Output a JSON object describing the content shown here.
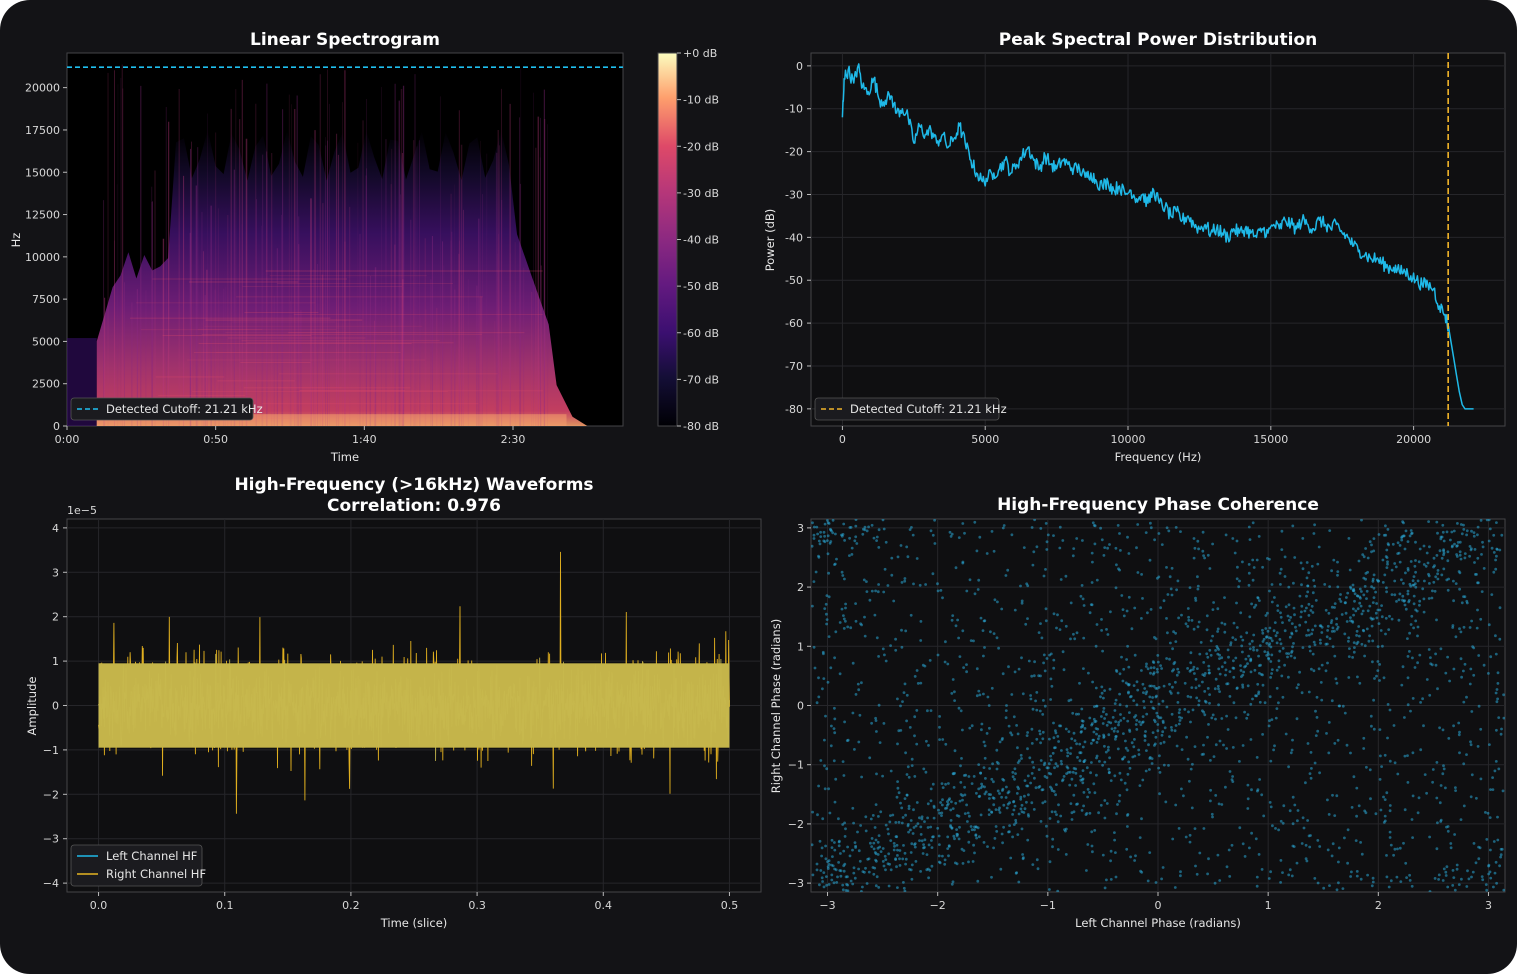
{
  "colors": {
    "background": "#131316",
    "panel": "#0f0f11",
    "axis": "#444448",
    "grid": "#26262a",
    "cyan": "#1fb9e8",
    "gold": "#e6b522",
    "blend": "#c4b44a"
  },
  "chart_data": [
    {
      "type": "heatmap",
      "title": "Linear Spectrogram",
      "xlabel": "Time",
      "ylabel": "Hz",
      "x_ticks": [
        "0:00",
        "0:50",
        "1:40",
        "2:30"
      ],
      "x_tick_seconds": [
        0,
        50,
        100,
        150
      ],
      "xlim_seconds": [
        0,
        187
      ],
      "y_ticks": [
        0,
        2500,
        5000,
        7500,
        10000,
        12500,
        15000,
        17500,
        20000
      ],
      "ylim": [
        0,
        22050
      ],
      "colorbar": {
        "colormap": "magma",
        "ticks": [
          "+0 dB",
          "-10 dB",
          "-20 dB",
          "-30 dB",
          "-40 dB",
          "-50 dB",
          "-60 dB",
          "-70 dB",
          "-80 dB"
        ],
        "range_db": [
          -80,
          0
        ]
      },
      "cutoff_line_hz": 21210,
      "legend": {
        "position": "lower-left",
        "entries": [
          "Detected Cutoff: 21.21 kHz"
        ]
      }
    },
    {
      "type": "line",
      "title": "Peak Spectral Power Distribution",
      "xlabel": "Frequency (Hz)",
      "ylabel": "Power (dB)",
      "x_ticks": [
        0,
        5000,
        10000,
        15000,
        20000
      ],
      "xlim": [
        -1100,
        23200
      ],
      "y_ticks": [
        0,
        -10,
        -20,
        -30,
        -40,
        -50,
        -60,
        -70,
        -80
      ],
      "ylim": [
        -84,
        3
      ],
      "grid": true,
      "cutoff_line_hz": 21210,
      "series_points": [
        [
          0,
          -12
        ],
        [
          60,
          -3
        ],
        [
          200,
          -1
        ],
        [
          400,
          -4
        ],
        [
          550,
          0
        ],
        [
          700,
          -5
        ],
        [
          900,
          -6
        ],
        [
          1100,
          -3
        ],
        [
          1300,
          -8
        ],
        [
          1500,
          -8
        ],
        [
          1700,
          -7
        ],
        [
          1900,
          -11
        ],
        [
          2100,
          -10
        ],
        [
          2300,
          -12
        ],
        [
          2500,
          -18
        ],
        [
          2700,
          -14
        ],
        [
          2900,
          -16
        ],
        [
          3100,
          -15
        ],
        [
          3300,
          -18
        ],
        [
          3500,
          -16
        ],
        [
          3700,
          -19
        ],
        [
          3900,
          -17
        ],
        [
          4100,
          -14
        ],
        [
          4300,
          -18
        ],
        [
          4500,
          -22
        ],
        [
          4700,
          -25
        ],
        [
          4900,
          -27
        ],
        [
          5100,
          -26
        ],
        [
          5300,
          -25
        ],
        [
          5500,
          -24
        ],
        [
          5700,
          -22
        ],
        [
          5900,
          -25
        ],
        [
          6100,
          -23
        ],
        [
          6300,
          -21
        ],
        [
          6500,
          -19
        ],
        [
          6700,
          -22
        ],
        [
          6900,
          -24
        ],
        [
          7100,
          -21
        ],
        [
          7300,
          -23
        ],
        [
          7500,
          -24
        ],
        [
          7700,
          -22
        ],
        [
          7900,
          -23
        ],
        [
          8100,
          -24
        ],
        [
          8300,
          -24
        ],
        [
          8500,
          -26
        ],
        [
          8700,
          -25
        ],
        [
          8900,
          -27
        ],
        [
          9100,
          -28
        ],
        [
          9300,
          -27
        ],
        [
          9500,
          -29
        ],
        [
          9700,
          -28
        ],
        [
          9900,
          -30
        ],
        [
          10100,
          -29
        ],
        [
          10300,
          -31
        ],
        [
          10500,
          -30
        ],
        [
          10700,
          -32
        ],
        [
          10900,
          -29
        ],
        [
          11100,
          -32
        ],
        [
          11300,
          -33
        ],
        [
          11500,
          -35
        ],
        [
          11700,
          -34
        ],
        [
          11900,
          -36
        ],
        [
          12100,
          -35
        ],
        [
          12300,
          -37
        ],
        [
          12500,
          -38
        ],
        [
          12700,
          -37
        ],
        [
          12900,
          -39
        ],
        [
          13100,
          -38
        ],
        [
          13300,
          -39
        ],
        [
          13500,
          -40
        ],
        [
          13700,
          -38
        ],
        [
          13900,
          -39
        ],
        [
          14100,
          -38
        ],
        [
          14300,
          -39
        ],
        [
          14500,
          -40
        ],
        [
          14700,
          -38
        ],
        [
          14900,
          -39
        ],
        [
          15100,
          -37
        ],
        [
          15300,
          -38
        ],
        [
          15500,
          -36
        ],
        [
          15700,
          -37
        ],
        [
          15900,
          -38
        ],
        [
          16100,
          -36
        ],
        [
          16300,
          -37
        ],
        [
          16500,
          -38
        ],
        [
          16700,
          -36
        ],
        [
          16900,
          -37
        ],
        [
          17100,
          -38
        ],
        [
          17300,
          -37
        ],
        [
          17500,
          -39
        ],
        [
          17700,
          -40
        ],
        [
          17900,
          -42
        ],
        [
          18100,
          -43
        ],
        [
          18300,
          -44
        ],
        [
          18500,
          -45
        ],
        [
          18700,
          -45
        ],
        [
          18900,
          -46
        ],
        [
          19100,
          -47
        ],
        [
          19300,
          -47
        ],
        [
          19500,
          -48
        ],
        [
          19700,
          -48
        ],
        [
          19900,
          -49
        ],
        [
          20100,
          -50
        ],
        [
          20300,
          -51
        ],
        [
          20500,
          -51
        ],
        [
          20700,
          -52
        ],
        [
          20900,
          -56
        ],
        [
          21100,
          -58
        ],
        [
          21250,
          -62
        ],
        [
          21400,
          -68
        ],
        [
          21500,
          -72
        ],
        [
          21600,
          -76
        ],
        [
          21700,
          -79
        ],
        [
          21800,
          -80
        ],
        [
          22000,
          -80
        ],
        [
          22100,
          -80
        ]
      ],
      "legend": {
        "position": "lower-left",
        "entries": [
          "Detected Cutoff: 21.21 kHz"
        ]
      }
    },
    {
      "type": "line",
      "title": "High-Frequency (>16kHz) Waveforms",
      "subtitle": "Correlation: 0.976",
      "xlabel": "Time (slice)",
      "ylabel": "Amplitude",
      "y_scale_label": "1e−5",
      "x_ticks": [
        "0.0",
        "0.1",
        "0.2",
        "0.3",
        "0.4",
        "0.5"
      ],
      "x_tick_values": [
        0.0,
        0.1,
        0.2,
        0.3,
        0.4,
        0.5
      ],
      "xlim": [
        -0.025,
        0.525
      ],
      "y_ticks": [
        4,
        3,
        2,
        1,
        0,
        -1,
        -2,
        -3,
        -4
      ],
      "ylim": [
        -4.2,
        4.2
      ],
      "grid": true,
      "series": [
        {
          "name": "Left Channel HF",
          "color": "#1fb9e8",
          "typical_envelope": [
            -1.6,
            1.6
          ]
        },
        {
          "name": "Right Channel HF",
          "color": "#e6b522",
          "peak_envelope": [
            -3.6,
            3.8
          ]
        }
      ],
      "legend": {
        "position": "lower-left",
        "entries": [
          "Left Channel HF",
          "Right Channel HF"
        ]
      }
    },
    {
      "type": "scatter",
      "title": "High-Frequency Phase Coherence",
      "xlabel": "Left Channel Phase (radians)",
      "ylabel": "Right Channel Phase (radians)",
      "x_ticks": [
        -3,
        -2,
        -1,
        0,
        1,
        2,
        3
      ],
      "y_ticks": [
        3,
        2,
        1,
        0,
        -1,
        -2,
        -3
      ],
      "xlim": [
        -3.15,
        3.15
      ],
      "ylim": [
        -3.15,
        3.15
      ],
      "grid": true,
      "color": "#2aa7d6",
      "note_pattern": "dense diagonal band along y = x over uniform background"
    }
  ]
}
